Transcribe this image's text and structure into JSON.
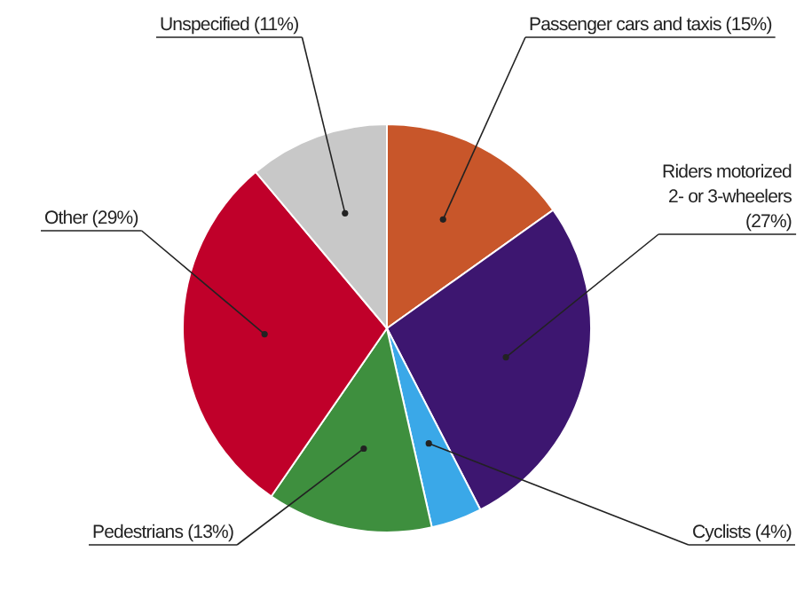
{
  "chart_data": {
    "type": "pie",
    "categories": [
      "Passenger cars and taxis",
      "Riders motorized 2- or 3-wheelers",
      "Cyclists",
      "Pedestrians",
      "Other",
      "Unspecified"
    ],
    "values": [
      15,
      27,
      4,
      13,
      29,
      11
    ],
    "value_labels": [
      "(15%)",
      "(27%)",
      "(4%)",
      "(13%)",
      "(29%)",
      "(11%)"
    ],
    "colors": [
      "#c8562a",
      "#3d1670",
      "#3aa8e8",
      "#3e8f3e",
      "#c0002a",
      "#c8c8c8"
    ]
  }
}
